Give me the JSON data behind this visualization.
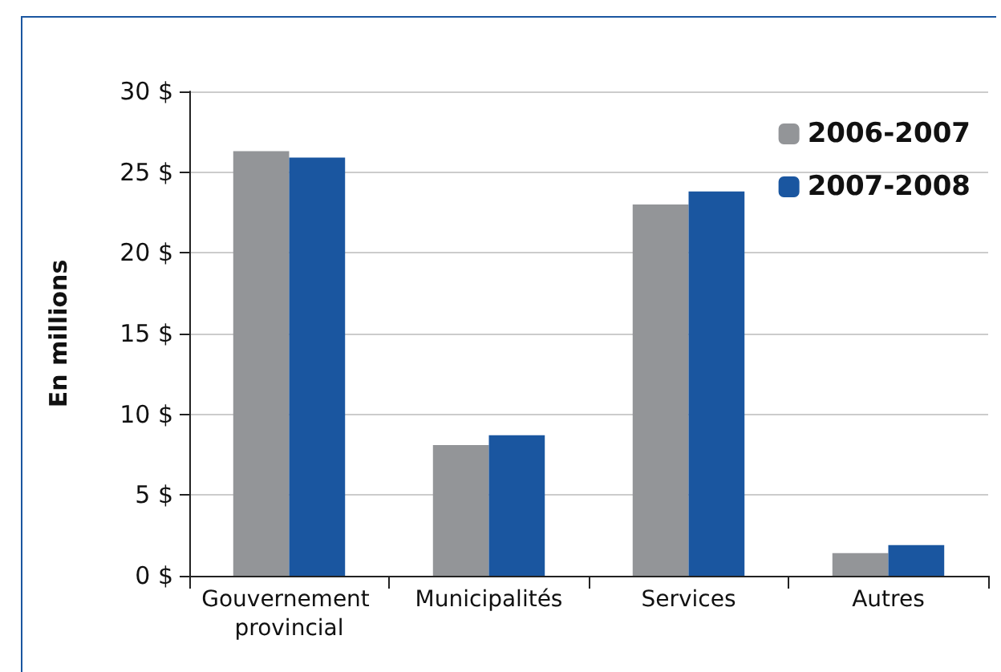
{
  "chart_data": {
    "type": "bar",
    "ylabel": "En millions",
    "categories": [
      "Gouvernement provincial",
      "Municipalités",
      "Services",
      "Autres"
    ],
    "series": [
      {
        "name": "2006-2007",
        "color": "#939598",
        "values": [
          26.3,
          8.1,
          23.0,
          1.4
        ]
      },
      {
        "name": "2007-2008",
        "color": "#1a56a0",
        "values": [
          25.9,
          8.7,
          23.8,
          1.9
        ]
      }
    ],
    "ylim": [
      0,
      30
    ],
    "yticks": [
      {
        "value": 0,
        "label": "0 $"
      },
      {
        "value": 5,
        "label": "5 $"
      },
      {
        "value": 10,
        "label": "10 $"
      },
      {
        "value": 15,
        "label": "15 $"
      },
      {
        "value": 20,
        "label": "20 $"
      },
      {
        "value": 25,
        "label": "25 $"
      },
      {
        "value": 30,
        "label": "30 $"
      }
    ],
    "grid": "y",
    "legend": "top right"
  }
}
